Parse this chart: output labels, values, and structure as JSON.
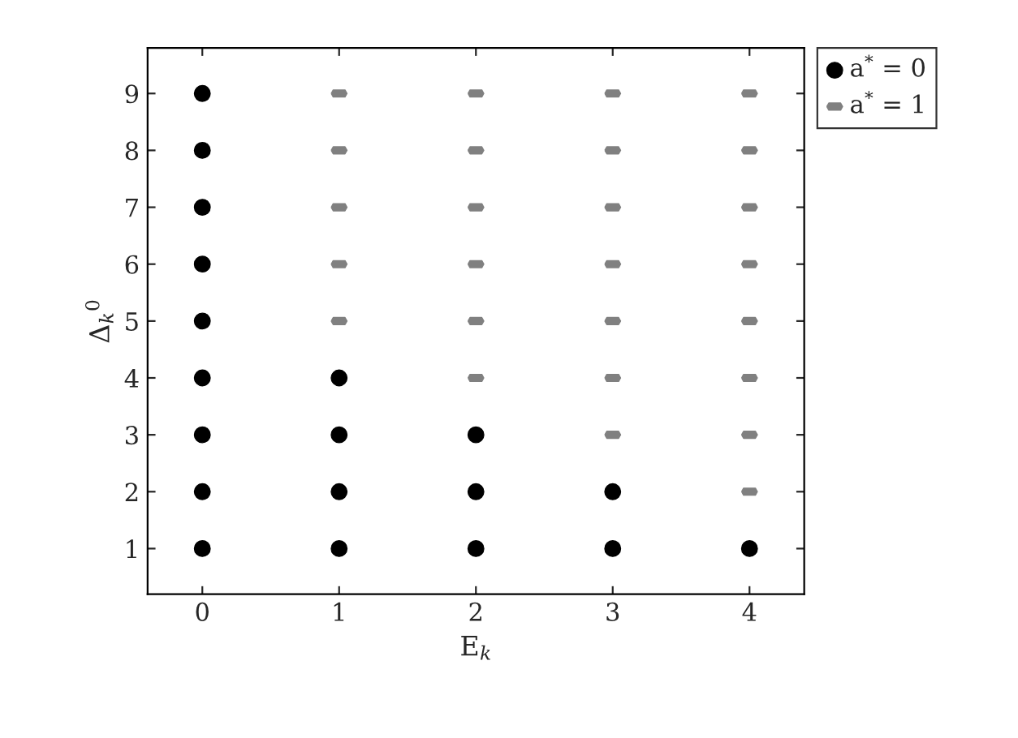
{
  "chart_data": {
    "type": "scatter",
    "xlabel": "E$_{k}$",
    "ylabel": "Δ$_{k}$$^{0}$",
    "series": [
      {
        "name": "a$^{*}$ = 0",
        "color": "#000000",
        "marker": "circle",
        "x": [
          0,
          0,
          0,
          0,
          0,
          0,
          0,
          0,
          0,
          1,
          1,
          1,
          1,
          2,
          2,
          2,
          3,
          3,
          4
        ],
        "values": [
          1,
          2,
          3,
          4,
          5,
          6,
          7,
          8,
          9,
          1,
          2,
          3,
          4,
          1,
          2,
          3,
          1,
          2,
          1
        ]
      },
      {
        "name": "a$^{*}$ = 1",
        "color": "#808080",
        "x": [
          1,
          1,
          1,
          1,
          1,
          2,
          2,
          2,
          2,
          2,
          2,
          3,
          3,
          3,
          3,
          3,
          3,
          3,
          4,
          4,
          4,
          4,
          4,
          4,
          4,
          4
        ],
        "values": [
          5,
          6,
          7,
          8,
          9,
          4,
          5,
          6,
          7,
          8,
          9,
          3,
          4,
          5,
          6,
          7,
          8,
          9,
          2,
          3,
          4,
          5,
          6,
          7,
          8,
          9
        ]
      }
    ],
    "xlim": [
      -0.4,
      4.4
    ],
    "ylim": [
      0.2,
      9.8
    ],
    "xticks": [
      0,
      1,
      2,
      3,
      4
    ],
    "yticks": [
      1,
      2,
      3,
      4,
      5,
      6,
      7,
      8,
      9
    ],
    "grid": false,
    "legend": "outside top right"
  }
}
